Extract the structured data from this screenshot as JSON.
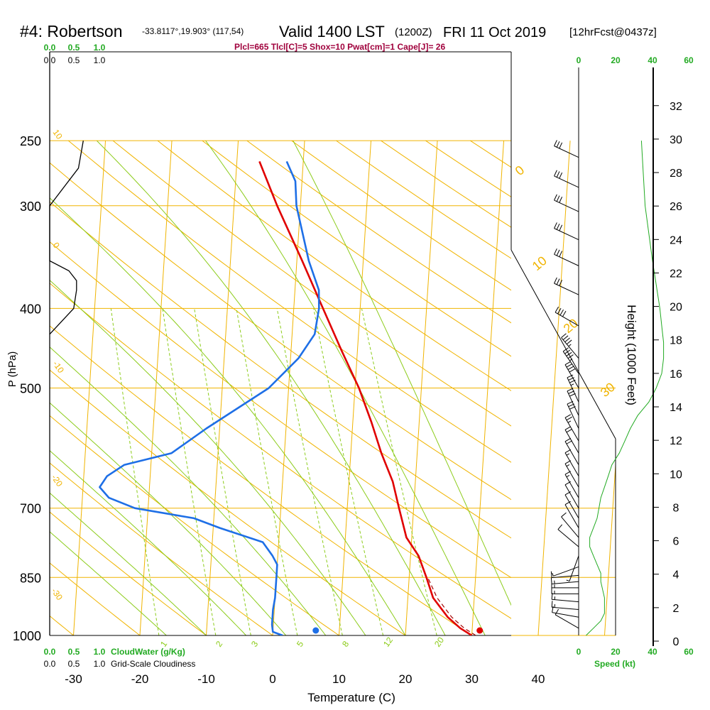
{
  "header": {
    "station": "#4: Robertson",
    "coords": "-33.8117°,19.903° (117,54)",
    "valid": "Valid 1400 LST",
    "zulu": "(1200Z)",
    "date": "FRI 11 Oct 2019",
    "fcst": "[12hrFcst@0437z]",
    "indices": "Plcl=665 Tlcl[C]=5 Shox=10 Pwat[cm]=1 Cape[J]= 26"
  },
  "labels": {
    "y_axis": "P (hPa)",
    "x_axis": "Temperature (C)",
    "height_axis": "Height (1000 Feet)",
    "speed_axis": "Speed (kt)",
    "cloudwater": "CloudWater (g/Kg)",
    "cloudiness": "Grid-Scale Cloudiness"
  },
  "colors": {
    "isotherm": "#f0b400",
    "dry_adiabat": "#8ccc1a",
    "moist_adiabat": "#8ccc1a",
    "mixing_ratio": "#8ccc1a",
    "temperature": "#e00000",
    "dewpoint": "#1e6fe6",
    "green_text": "#22aa22",
    "magenta_text": "#a0003c"
  },
  "chart_data": {
    "type": "line",
    "pressure_levels": [
      1000,
      850,
      700,
      500,
      400,
      300,
      250
    ],
    "pressure_tick_labels": [
      "1000",
      "850",
      "700",
      "500",
      "400",
      "300",
      "250"
    ],
    "temperature_ticks": [
      -30,
      -20,
      -10,
      0,
      10,
      20,
      30,
      40
    ],
    "temperature_tick_labels": [
      "-30",
      "-20",
      "-10",
      "0",
      "10",
      "20",
      "30",
      "40"
    ],
    "temperature_range": [
      -33.5,
      36
    ],
    "pressure_range": [
      1000,
      250
    ],
    "height_ticks": [
      0,
      2,
      4,
      6,
      8,
      10,
      12,
      14,
      16,
      18,
      20,
      22,
      24,
      26,
      28,
      30,
      32
    ],
    "height_tick_labels": [
      "0",
      "2",
      "4",
      "6",
      "8",
      "10",
      "12",
      "14",
      "16",
      "18",
      "20",
      "22",
      "24",
      "26",
      "28",
      "30",
      "32"
    ],
    "speed_ticks": [
      "0",
      "20",
      "40",
      "60"
    ],
    "cloud_ticks_top": [
      "0.0",
      "0.5",
      "1.0"
    ],
    "cloud_ticks_bottom": [
      "0.0",
      "0.5",
      "1.0"
    ],
    "isotherm_labels": [
      "0",
      "10",
      "20",
      "30"
    ],
    "dry_adiabat_labels": [
      "10",
      "0",
      "-10",
      "-20",
      "-30"
    ],
    "mixing_ratio_labels": [
      "1",
      "2",
      "3",
      "5",
      "8",
      "12",
      "20"
    ],
    "series": [
      {
        "name": "Temperature",
        "unit": "C",
        "points": [
          [
            1000,
            30.0
          ],
          [
            980,
            28.2
          ],
          [
            950,
            26.2
          ],
          [
            900,
            23.8
          ],
          [
            850,
            22.6
          ],
          [
            800,
            21.2
          ],
          [
            760,
            19.2
          ],
          [
            700,
            17.8
          ],
          [
            650,
            16.6
          ],
          [
            600,
            14.6
          ],
          [
            550,
            12.8
          ],
          [
            500,
            10.6
          ],
          [
            450,
            7.6
          ],
          [
            400,
            4.4
          ],
          [
            350,
            0.8
          ],
          [
            300,
            -3.5
          ],
          [
            265,
            -6.6
          ]
        ]
      },
      {
        "name": "Dewpoint",
        "unit": "C",
        "points": [
          [
            1000,
            1.5
          ],
          [
            990,
            0.0
          ],
          [
            970,
            -0.2
          ],
          [
            930,
            -0.2
          ],
          [
            900,
            0.0
          ],
          [
            850,
            0.0
          ],
          [
            820,
            0.0
          ],
          [
            800,
            -0.8
          ],
          [
            770,
            -2.4
          ],
          [
            740,
            -9.0
          ],
          [
            720,
            -13.0
          ],
          [
            700,
            -22.0
          ],
          [
            680,
            -26.0
          ],
          [
            660,
            -27.5
          ],
          [
            640,
            -26.5
          ],
          [
            620,
            -24.0
          ],
          [
            600,
            -17.0
          ],
          [
            560,
            -12.0
          ],
          [
            500,
            -3.0
          ],
          [
            460,
            1.2
          ],
          [
            430,
            3.4
          ],
          [
            400,
            3.8
          ],
          [
            380,
            3.6
          ],
          [
            350,
            1.8
          ],
          [
            300,
            -0.6
          ],
          [
            280,
            -1.0
          ],
          [
            265,
            -2.5
          ]
        ]
      },
      {
        "name": "Parcel",
        "unit": "C",
        "points": [
          [
            1000,
            30.6
          ],
          [
            980,
            28.8
          ],
          [
            950,
            26.8
          ],
          [
            900,
            24.4
          ],
          [
            850,
            22.8
          ]
        ]
      }
    ],
    "surface_temperature": 31.2,
    "surface_dewpoint": 6.5,
    "cloudiness_profile": [
      [
        250,
        0.35
      ],
      [
        270,
        0.3
      ],
      [
        300,
        0.0
      ],
      [
        350,
        0.0
      ],
      [
        360,
        0.2
      ],
      [
        370,
        0.28
      ],
      [
        380,
        0.28
      ],
      [
        400,
        0.25
      ],
      [
        430,
        0.0
      ]
    ],
    "wind_profile_kt": [
      [
        1000,
        4
      ],
      [
        980,
        8
      ],
      [
        960,
        12
      ],
      [
        940,
        14
      ],
      [
        920,
        14
      ],
      [
        900,
        14
      ],
      [
        880,
        13
      ],
      [
        860,
        12
      ],
      [
        840,
        12
      ],
      [
        820,
        10
      ],
      [
        800,
        8
      ],
      [
        780,
        6
      ],
      [
        760,
        6
      ],
      [
        740,
        8
      ],
      [
        720,
        10
      ],
      [
        700,
        11
      ],
      [
        680,
        12
      ],
      [
        660,
        14
      ],
      [
        640,
        16
      ],
      [
        620,
        18
      ],
      [
        600,
        22
      ],
      [
        580,
        25
      ],
      [
        560,
        28
      ],
      [
        540,
        32
      ],
      [
        520,
        38
      ],
      [
        500,
        42
      ],
      [
        480,
        45
      ],
      [
        460,
        46
      ],
      [
        440,
        46
      ],
      [
        420,
        45
      ],
      [
        400,
        44
      ],
      [
        350,
        40
      ],
      [
        300,
        36
      ],
      [
        250,
        34
      ]
    ],
    "wind_barbs": [
      {
        "p": 980,
        "dir": 300,
        "kt": 10
      },
      {
        "p": 950,
        "dir": 280,
        "kt": 10
      },
      {
        "p": 930,
        "dir": 275,
        "kt": 15
      },
      {
        "p": 910,
        "dir": 275,
        "kt": 15
      },
      {
        "p": 890,
        "dir": 270,
        "kt": 15
      },
      {
        "p": 875,
        "dir": 270,
        "kt": 15
      },
      {
        "p": 860,
        "dir": 265,
        "kt": 15
      },
      {
        "p": 845,
        "dir": 265,
        "kt": 10
      },
      {
        "p": 825,
        "dir": 250,
        "kt": 5
      },
      {
        "p": 800,
        "dir": 200,
        "kt": 5
      },
      {
        "p": 780,
        "dir": 310,
        "kt": 10
      },
      {
        "p": 760,
        "dir": 320,
        "kt": 10
      },
      {
        "p": 740,
        "dir": 330,
        "kt": 10
      },
      {
        "p": 720,
        "dir": 330,
        "kt": 10
      },
      {
        "p": 700,
        "dir": 330,
        "kt": 10
      },
      {
        "p": 680,
        "dir": 330,
        "kt": 15
      },
      {
        "p": 660,
        "dir": 330,
        "kt": 15
      },
      {
        "p": 640,
        "dir": 330,
        "kt": 15
      },
      {
        "p": 620,
        "dir": 330,
        "kt": 20
      },
      {
        "p": 600,
        "dir": 330,
        "kt": 20
      },
      {
        "p": 580,
        "dir": 330,
        "kt": 25
      },
      {
        "p": 560,
        "dir": 335,
        "kt": 30
      },
      {
        "p": 540,
        "dir": 335,
        "kt": 30
      },
      {
        "p": 520,
        "dir": 335,
        "kt": 35
      },
      {
        "p": 500,
        "dir": 330,
        "kt": 40
      },
      {
        "p": 480,
        "dir": 325,
        "kt": 45
      },
      {
        "p": 460,
        "dir": 320,
        "kt": 45
      },
      {
        "p": 420,
        "dir": 300,
        "kt": 40
      },
      {
        "p": 385,
        "dir": 295,
        "kt": 30
      },
      {
        "p": 355,
        "dir": 295,
        "kt": 30
      },
      {
        "p": 330,
        "dir": 295,
        "kt": 30
      },
      {
        "p": 305,
        "dir": 295,
        "kt": 30
      },
      {
        "p": 285,
        "dir": 295,
        "kt": 30
      },
      {
        "p": 262,
        "dir": 295,
        "kt": 30
      }
    ]
  }
}
